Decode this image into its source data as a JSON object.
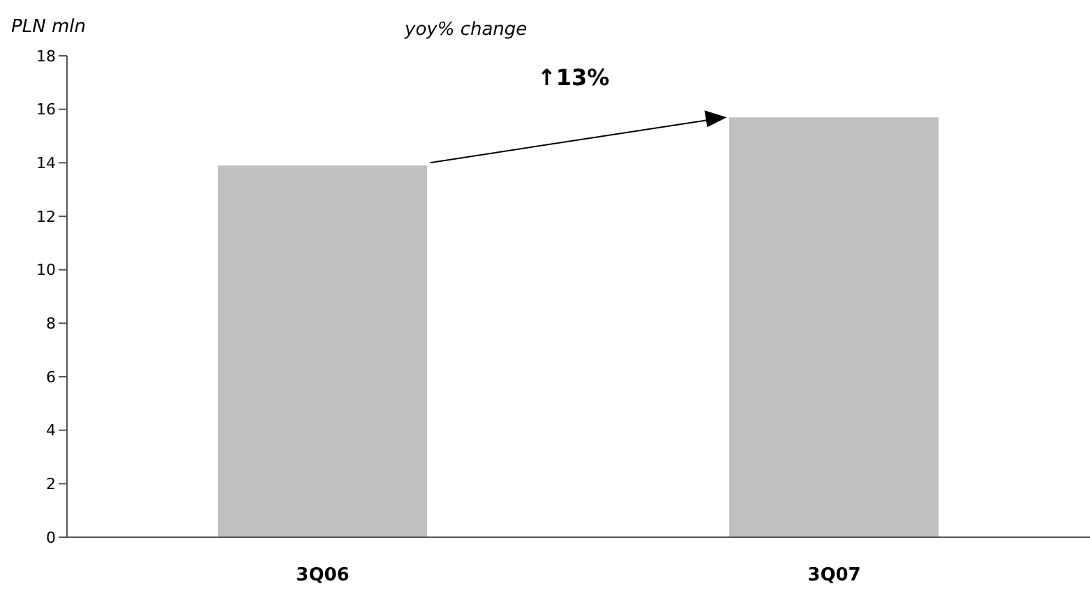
{
  "chart_data": {
    "type": "bar",
    "ylabel": "PLN mln",
    "categories": [
      "3Q06",
      "3Q07"
    ],
    "values": [
      13.9,
      15.7
    ],
    "color": "#c0c0c0",
    "ylim": [
      0,
      18
    ],
    "yticks": [
      0,
      2,
      4,
      6,
      8,
      10,
      12,
      14,
      16,
      18
    ],
    "annotations": [
      "yoy% change",
      "↑13%"
    ]
  }
}
